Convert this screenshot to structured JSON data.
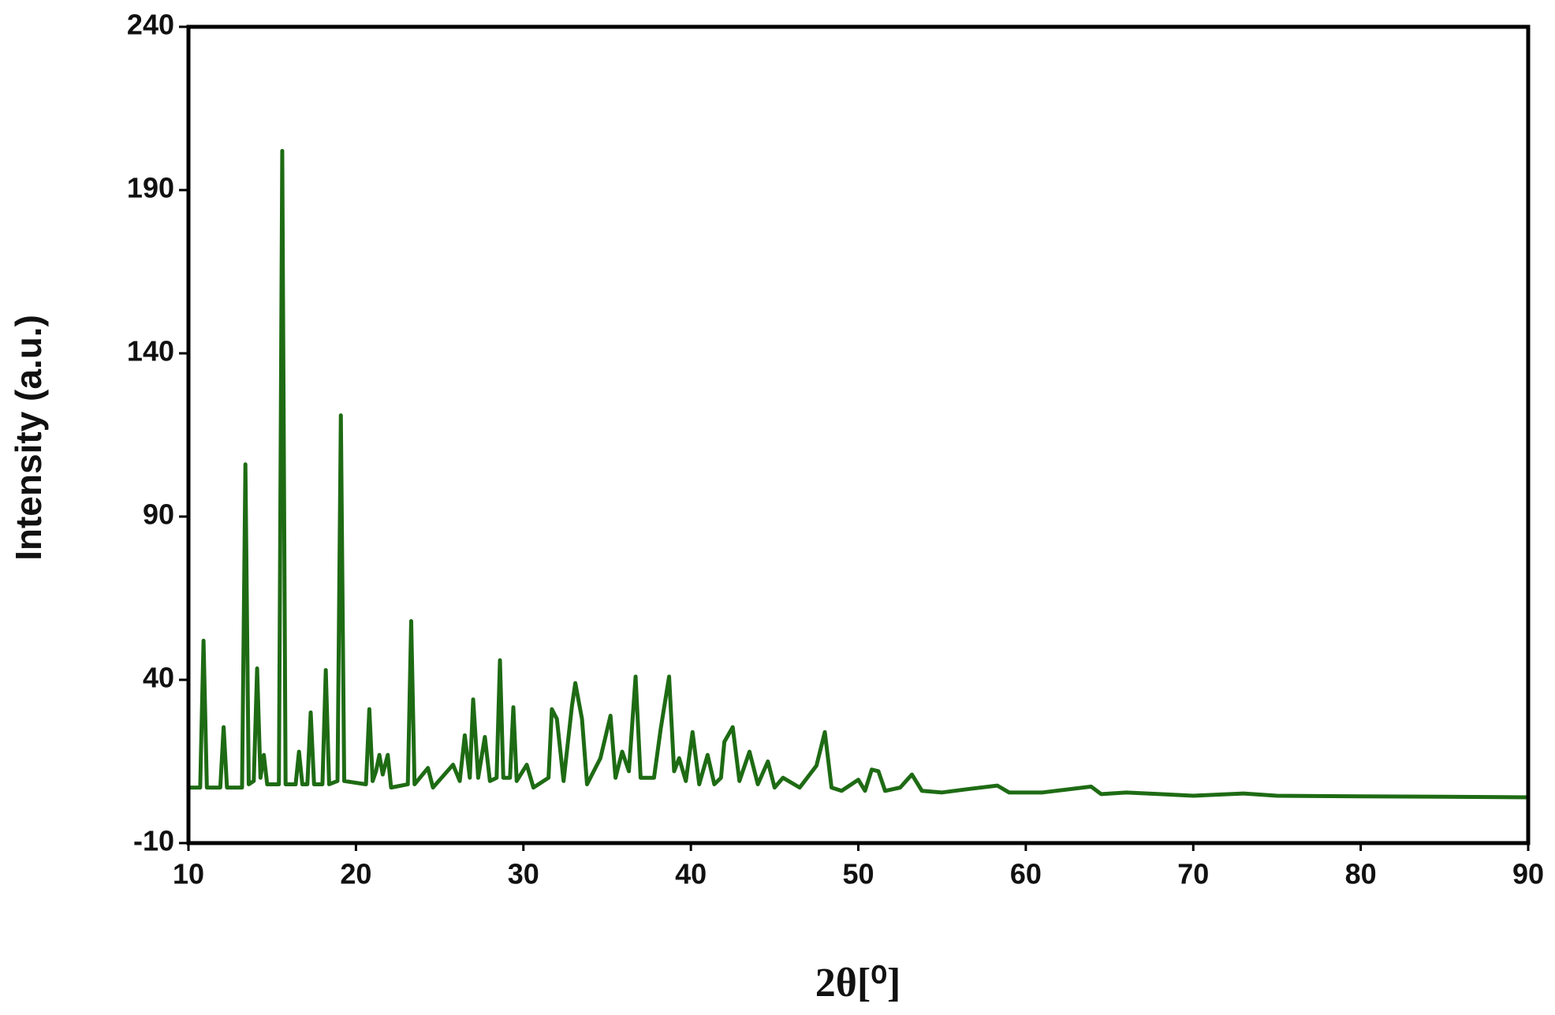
{
  "chart_data": {
    "type": "line",
    "x_label": "2θ[⁰]",
    "y_label": "Intensity (a.u.)",
    "xlim": [
      10,
      90
    ],
    "xticks": [
      10,
      20,
      30,
      40,
      50,
      60,
      70,
      80,
      90
    ],
    "ylim": [
      -10,
      240
    ],
    "yticks": [
      -10,
      40,
      90,
      140,
      190,
      240
    ],
    "x": [
      10,
      10.7,
      10.9,
      11.1,
      11.9,
      12.1,
      12.3,
      13.2,
      13.4,
      13.6,
      13.9,
      14.1,
      14.3,
      14.5,
      14.7,
      15.4,
      15.6,
      15.8,
      16.4,
      16.6,
      16.8,
      17.1,
      17.3,
      17.5,
      18.0,
      18.2,
      18.4,
      18.9,
      19.1,
      19.3,
      20.6,
      20.8,
      21.0,
      21.2,
      21.4,
      21.6,
      21.9,
      22.1,
      23.1,
      23.3,
      23.5,
      24.3,
      24.6,
      25.8,
      26.2,
      26.5,
      26.8,
      27.0,
      27.3,
      27.7,
      28.0,
      28.4,
      28.6,
      28.8,
      29.2,
      29.4,
      29.6,
      30.2,
      30.6,
      31.5,
      31.7,
      32.0,
      32.4,
      32.9,
      33.1,
      33.5,
      33.8,
      34.6,
      35.2,
      35.5,
      35.9,
      36.3,
      36.7,
      37.0,
      37.8,
      38.2,
      38.7,
      39.0,
      39.3,
      39.7,
      40.1,
      40.5,
      41.0,
      41.4,
      41.8,
      42.0,
      42.5,
      42.9,
      43.5,
      44.0,
      44.6,
      45.0,
      45.5,
      46.5,
      47.5,
      48.0,
      48.4,
      49.0,
      50.0,
      50.4,
      50.8,
      51.2,
      51.6,
      52.5,
      53.2,
      53.8,
      55,
      56.5,
      58.3,
      59,
      61,
      63.9,
      64.5,
      66,
      68,
      70,
      73,
      75,
      80,
      85,
      90
    ],
    "series": [
      {
        "color": "#1e6b14",
        "values": [
          7,
          7,
          52,
          7,
          7,
          25.5,
          7,
          7,
          106,
          8,
          9,
          43.5,
          10,
          17,
          8,
          8,
          202,
          8,
          8,
          18,
          8,
          8,
          30,
          8,
          8,
          43,
          8,
          9,
          121,
          9,
          8,
          31,
          9,
          12,
          17,
          11,
          17,
          7,
          8,
          58,
          8,
          13,
          7,
          14,
          9,
          23,
          10,
          34,
          10,
          22.5,
          9,
          10,
          46,
          10,
          10,
          31.6,
          9,
          14,
          7,
          10,
          31,
          28,
          9,
          32,
          39,
          28,
          8,
          16,
          29,
          10,
          18,
          12,
          41,
          10,
          10,
          25,
          41,
          12,
          16,
          9,
          24,
          8,
          17,
          8,
          10,
          21,
          25.5,
          9,
          18,
          8,
          15,
          7,
          10,
          7,
          13.7,
          24,
          7,
          6,
          9.4,
          6,
          12.5,
          12,
          6,
          7,
          11,
          6,
          5.5,
          6.5,
          7.6,
          5.5,
          5.5,
          7.3,
          5,
          5.5,
          5,
          4.5,
          5.2,
          4.5,
          4.3,
          4.2,
          4
        ]
      }
    ]
  }
}
